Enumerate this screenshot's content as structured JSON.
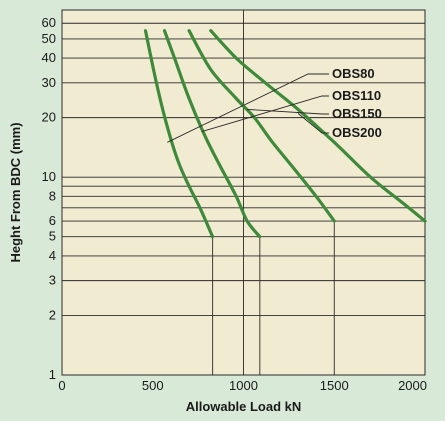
{
  "chart_data": {
    "type": "line",
    "xlabel": "Allowable Load kN",
    "ylabel": "Heght From BDC (mm)",
    "x_scale": "linear",
    "y_scale": "log",
    "xlim": [
      0,
      2000
    ],
    "ylim": [
      1,
      70
    ],
    "x_ticks": [
      0,
      500,
      1000,
      1500,
      2000
    ],
    "x_tick_labels": [
      "0",
      "500",
      "1000",
      "1500",
      "2000"
    ],
    "y_ticks": [
      1,
      2,
      3,
      4,
      5,
      6,
      8,
      10,
      20,
      30,
      40,
      50,
      60
    ],
    "y_tick_labels": [
      "1",
      "2",
      "3",
      "4",
      "5",
      "6",
      "8",
      "10",
      "20",
      "30",
      "40",
      "50",
      "60"
    ],
    "extra_y_gridlines": [
      7,
      9
    ],
    "grid": true,
    "legend_placement": "upper-right, labels with leader lines",
    "colors": {
      "background": "#d9e9d8",
      "plot_area": "#f1ebd2",
      "curve": "#3f8a3a",
      "grid": "#2a2a2a"
    },
    "series": [
      {
        "name": "OBS80",
        "points": [
          [
            460,
            55
          ],
          [
            520,
            30
          ],
          [
            580,
            18
          ],
          [
            640,
            12
          ],
          [
            700,
            9
          ],
          [
            760,
            7
          ],
          [
            830,
            5
          ]
        ],
        "drop_to": 1,
        "legend_anchor": [
          580,
          15
        ]
      },
      {
        "name": "OBS110",
        "points": [
          [
            565,
            55
          ],
          [
            620,
            40
          ],
          [
            700,
            25
          ],
          [
            790,
            16
          ],
          [
            880,
            11
          ],
          [
            960,
            8
          ],
          [
            1020,
            6
          ],
          [
            1090,
            5
          ]
        ],
        "drop_to": 1,
        "legend_anchor": [
          770,
          17
        ]
      },
      {
        "name": "OBS150",
        "points": [
          [
            700,
            55
          ],
          [
            820,
            35
          ],
          [
            960,
            25
          ],
          [
            1060,
            20
          ],
          [
            1160,
            15
          ],
          [
            1280,
            11
          ],
          [
            1400,
            8
          ],
          [
            1500,
            6
          ]
        ],
        "drop_to": 1,
        "legend_anchor": [
          1020,
          22
        ]
      },
      {
        "name": "OBS200",
        "points": [
          [
            820,
            55
          ],
          [
            960,
            40
          ],
          [
            1120,
            30
          ],
          [
            1300,
            22
          ],
          [
            1500,
            15
          ],
          [
            1700,
            10
          ],
          [
            1870,
            7.5
          ],
          [
            2000,
            6
          ]
        ],
        "drop_to": null,
        "legend_anchor": [
          1300,
          21
        ]
      }
    ]
  }
}
